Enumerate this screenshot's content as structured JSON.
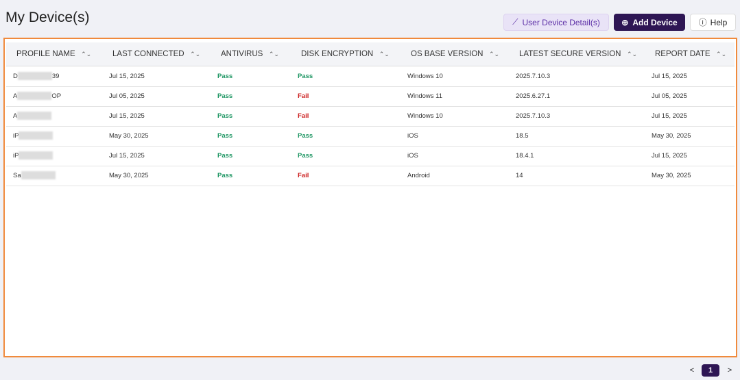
{
  "header": {
    "title": "My Device(s)",
    "buttons": [
      "User Device Detail(s)",
      "Add Device",
      "Help"
    ]
  },
  "table": {
    "columns": [
      "PROFILE NAME",
      "LAST CONNECTED",
      "ANTIVIRUS",
      "DISK ENCRYPTION",
      "OS BASE VERSION",
      "LATEST SECURE VERSION",
      "REPORT DATE"
    ],
    "rows": [
      [
        {
          "start": "D",
          "end": "39"
        },
        "Jul 15, 2025",
        {
          "text": "Pass",
          "color": "#1e9663"
        },
        {
          "text": "Pass",
          "color": "#1e9663"
        },
        "Windows 10",
        "2025.7.10.3",
        "Jul 15, 2025"
      ],
      [
        {
          "start": "A",
          "end": "OP"
        },
        "Jul 05, 2025",
        {
          "text": "Pass",
          "color": "#1e9663"
        },
        {
          "text": "Fail",
          "color": "#cc1f1f"
        },
        "Windows 11",
        "2025.6.27.1",
        "Jul 05, 2025"
      ],
      [
        {
          "start": "A"
        },
        "Jul 15, 2025",
        {
          "text": "Pass",
          "color": "#1e9663"
        },
        {
          "text": "Fail",
          "color": "#cc1f1f"
        },
        "Windows 10",
        "2025.7.10.3",
        "Jul 15, 2025"
      ],
      [
        {
          "start": "iP"
        },
        "May 30, 2025",
        {
          "text": "Pass",
          "color": "#1e9663"
        },
        {
          "text": "Pass",
          "color": "#1e9663"
        },
        "iOS",
        "18.5",
        "May 30, 2025"
      ],
      [
        {
          "start": "iP"
        },
        "Jul 15, 2025",
        {
          "text": "Pass",
          "color": "#1e9663"
        },
        {
          "text": "Pass",
          "color": "#1e9663"
        },
        "iOS",
        "18.4.1",
        "Jul 15, 2025"
      ],
      [
        {
          "start": "Sa"
        },
        "May 30, 2025",
        {
          "text": "Pass",
          "color": "#1e9663"
        },
        {
          "text": "Fail",
          "color": "#cc1f1f"
        },
        "Android",
        "14",
        "May 30, 2025"
      ]
    ]
  },
  "pagination": {
    "prev": "<",
    "current": "1",
    "next": ">"
  }
}
